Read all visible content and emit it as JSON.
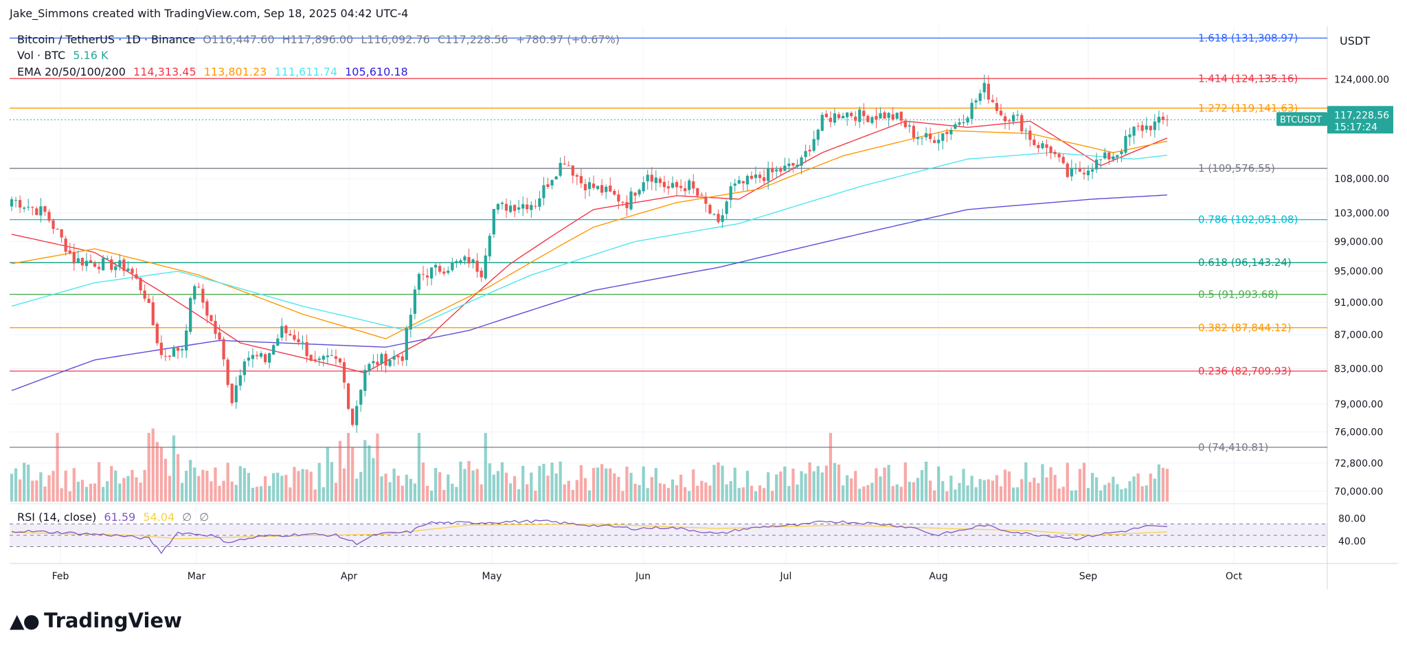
{
  "credit": "Jake_Simmons created with TradingView.com, Sep 18, 2025 04:42 UTC-4",
  "header": {
    "symbol": "Bitcoin / TetherUS · 1D · Binance",
    "o": "O116,447.60",
    "h": "H117,896.00",
    "l": "L116,092.76",
    "c": "C117,228.56",
    "change": "+780.97 (+0.67%)",
    "vol_label": "Vol · BTC",
    "vol_value": "5.16 K",
    "ema_label": "EMA 20/50/100/200",
    "ema_values": [
      "114,313.45",
      "113,801.23",
      "111,611.74",
      "105,610.18"
    ],
    "rsi_label": "RSI (14, close)",
    "rsi_value": "61.59",
    "rsi_ma": "54.04",
    "rsi_null1": "∅",
    "rsi_null2": "∅"
  },
  "currency": "USDT",
  "logo_text": "TradingView",
  "colors": {
    "up": "#26a69a",
    "down": "#ef5350",
    "ema20": "#f23645",
    "ema50": "#ff9800",
    "ema100": "#4ee6f0",
    "ema200": "#5b4bd8",
    "rsi": "#7e57c2",
    "rsi_ma": "#f7d147"
  },
  "chart_data": {
    "type": "candlestick",
    "y_axis_labels": [
      "124,000.00",
      "108,000.00",
      "103,000.00",
      "99,000.00",
      "95,000.00",
      "91,000.00",
      "87,000.00",
      "83,000.00",
      "79,000.00",
      "76,000.00",
      "72,800.00",
      "70,000.00"
    ],
    "y_axis_values": [
      124000,
      108000,
      103000,
      99000,
      95000,
      91000,
      87000,
      83000,
      79000,
      76000,
      72800,
      70000
    ],
    "rsi_axis_labels": [
      "80.00",
      "40.00"
    ],
    "x_axis_labels": [
      "Feb",
      "Mar",
      "Apr",
      "May",
      "Jun",
      "Jul",
      "Aug",
      "Sep",
      "Oct"
    ],
    "price_label": {
      "symbol": "BTCUSDT",
      "price": "117,228.56",
      "countdown": "15:17:24",
      "value": 117228.56
    },
    "fib_levels": [
      {
        "label": "1.618 (131,308.97)",
        "value": 131308.97,
        "color": "#2962ff"
      },
      {
        "label": "1.414 (124,135.16)",
        "value": 124135.16,
        "color": "#f23645"
      },
      {
        "label": "1.272 (119,141.63)",
        "value": 119141.63,
        "color": "#ff9800"
      },
      {
        "label": "1 (109,576.55)",
        "value": 109576.55,
        "color": "#787b86"
      },
      {
        "label": "0.786 (102,051.08)",
        "value": 102051.08,
        "color": "#00bcd4"
      },
      {
        "label": "0.618 (96,143.24)",
        "value": 96143.24,
        "color": "#089981"
      },
      {
        "label": "0.5 (91,993.68)",
        "value": 91993.68,
        "color": "#4caf50"
      },
      {
        "label": "0.382 (87,844.12)",
        "value": 87844.12,
        "color": "#ff9800"
      },
      {
        "label": "0.236 (82,709.93)",
        "value": 82709.93,
        "color": "#f23645"
      },
      {
        "label": "0 (74,410.81)",
        "value": 74410.81,
        "color": "#787b86"
      }
    ],
    "close_series_anchors": [
      [
        0,
        105000
      ],
      [
        8,
        103000
      ],
      [
        15,
        96500
      ],
      [
        22,
        96000
      ],
      [
        28,
        95500
      ],
      [
        32,
        92000
      ],
      [
        36,
        84500
      ],
      [
        41,
        85500
      ],
      [
        44,
        93500
      ],
      [
        50,
        86000
      ],
      [
        53,
        79500
      ],
      [
        56,
        84500
      ],
      [
        61,
        84000
      ],
      [
        65,
        87500
      ],
      [
        69,
        86500
      ],
      [
        73,
        83500
      ],
      [
        77,
        84000
      ],
      [
        79,
        83500
      ],
      [
        82,
        77000
      ],
      [
        85,
        83000
      ],
      [
        89,
        84000
      ],
      [
        94,
        84500
      ],
      [
        98,
        94500
      ],
      [
        104,
        95500
      ],
      [
        110,
        96500
      ],
      [
        113,
        95000
      ],
      [
        116,
        103500
      ],
      [
        119,
        104000
      ],
      [
        126,
        104500
      ],
      [
        130,
        108500
      ],
      [
        133,
        111000
      ],
      [
        137,
        107500
      ],
      [
        143,
        106000
      ],
      [
        148,
        104500
      ],
      [
        153,
        109000
      ],
      [
        158,
        106500
      ],
      [
        163,
        107000
      ],
      [
        167,
        104000
      ],
      [
        170,
        101000
      ],
      [
        173,
        106500
      ],
      [
        177,
        107500
      ],
      [
        181,
        108500
      ],
      [
        186,
        109500
      ],
      [
        190,
        110500
      ],
      [
        195,
        117000
      ],
      [
        200,
        118500
      ],
      [
        205,
        117800
      ],
      [
        210,
        118000
      ],
      [
        213,
        117500
      ],
      [
        217,
        115000
      ],
      [
        221,
        114000
      ],
      [
        226,
        115800
      ],
      [
        230,
        118500
      ],
      [
        234,
        122500
      ],
      [
        238,
        118200
      ],
      [
        242,
        117300
      ],
      [
        246,
        113500
      ],
      [
        250,
        112500
      ],
      [
        254,
        108500
      ],
      [
        258,
        109500
      ],
      [
        262,
        110800
      ],
      [
        266,
        112000
      ],
      [
        270,
        115500
      ],
      [
        275,
        116500
      ],
      [
        278,
        117228
      ]
    ],
    "ema_anchors": {
      "ema20": [
        [
          0,
          100000
        ],
        [
          20,
          97500
        ],
        [
          37,
          92000
        ],
        [
          55,
          86000
        ],
        [
          85,
          82500
        ],
        [
          100,
          86500
        ],
        [
          120,
          96000
        ],
        [
          140,
          103500
        ],
        [
          160,
          105500
        ],
        [
          175,
          105000
        ],
        [
          195,
          112000
        ],
        [
          215,
          117000
        ],
        [
          230,
          116000
        ],
        [
          245,
          117000
        ],
        [
          262,
          110000
        ],
        [
          278,
          114300
        ]
      ],
      "ema50": [
        [
          0,
          96000
        ],
        [
          20,
          98000
        ],
        [
          45,
          94500
        ],
        [
          70,
          89500
        ],
        [
          90,
          86500
        ],
        [
          115,
          93000
        ],
        [
          140,
          101000
        ],
        [
          160,
          104500
        ],
        [
          180,
          106500
        ],
        [
          200,
          111500
        ],
        [
          225,
          115500
        ],
        [
          245,
          115000
        ],
        [
          265,
          112000
        ],
        [
          278,
          113800
        ]
      ],
      "ema100": [
        [
          0,
          90500
        ],
        [
          20,
          93500
        ],
        [
          40,
          95000
        ],
        [
          70,
          90500
        ],
        [
          95,
          87500
        ],
        [
          125,
          94500
        ],
        [
          150,
          99000
        ],
        [
          175,
          101500
        ],
        [
          205,
          107000
        ],
        [
          230,
          111000
        ],
        [
          250,
          112000
        ],
        [
          270,
          111000
        ],
        [
          278,
          111600
        ]
      ],
      "ema200": [
        [
          0,
          80500
        ],
        [
          20,
          84000
        ],
        [
          50,
          86300
        ],
        [
          90,
          85500
        ],
        [
          110,
          87500
        ],
        [
          140,
          92500
        ],
        [
          170,
          95500
        ],
        [
          200,
          99500
        ],
        [
          230,
          103500
        ],
        [
          260,
          105000
        ],
        [
          278,
          105600
        ]
      ]
    },
    "rsi_anchors": [
      [
        0,
        58
      ],
      [
        12,
        55
      ],
      [
        25,
        50
      ],
      [
        33,
        44
      ],
      [
        36,
        20
      ],
      [
        40,
        55
      ],
      [
        48,
        50
      ],
      [
        52,
        38
      ],
      [
        60,
        48
      ],
      [
        70,
        52
      ],
      [
        78,
        50
      ],
      [
        83,
        36
      ],
      [
        88,
        52
      ],
      [
        96,
        56
      ],
      [
        100,
        72
      ],
      [
        110,
        72
      ],
      [
        120,
        74
      ],
      [
        128,
        75
      ],
      [
        135,
        70
      ],
      [
        143,
        66
      ],
      [
        150,
        62
      ],
      [
        158,
        64
      ],
      [
        165,
        58
      ],
      [
        170,
        52
      ],
      [
        175,
        60
      ],
      [
        182,
        66
      ],
      [
        190,
        68
      ],
      [
        196,
        75
      ],
      [
        205,
        72
      ],
      [
        212,
        68
      ],
      [
        218,
        62
      ],
      [
        222,
        50
      ],
      [
        228,
        58
      ],
      [
        234,
        68
      ],
      [
        238,
        60
      ],
      [
        245,
        52
      ],
      [
        252,
        48
      ],
      [
        256,
        44
      ],
      [
        262,
        52
      ],
      [
        268,
        58
      ],
      [
        273,
        66
      ],
      [
        278,
        64
      ]
    ],
    "rsi_ma_anchors": [
      [
        0,
        55
      ],
      [
        30,
        50
      ],
      [
        40,
        44
      ],
      [
        60,
        48
      ],
      [
        90,
        52
      ],
      [
        110,
        68
      ],
      [
        140,
        70
      ],
      [
        170,
        62
      ],
      [
        200,
        68
      ],
      [
        225,
        62
      ],
      [
        245,
        58
      ],
      [
        260,
        50
      ],
      [
        278,
        56
      ]
    ],
    "ylim": [
      69000,
      133500
    ]
  }
}
